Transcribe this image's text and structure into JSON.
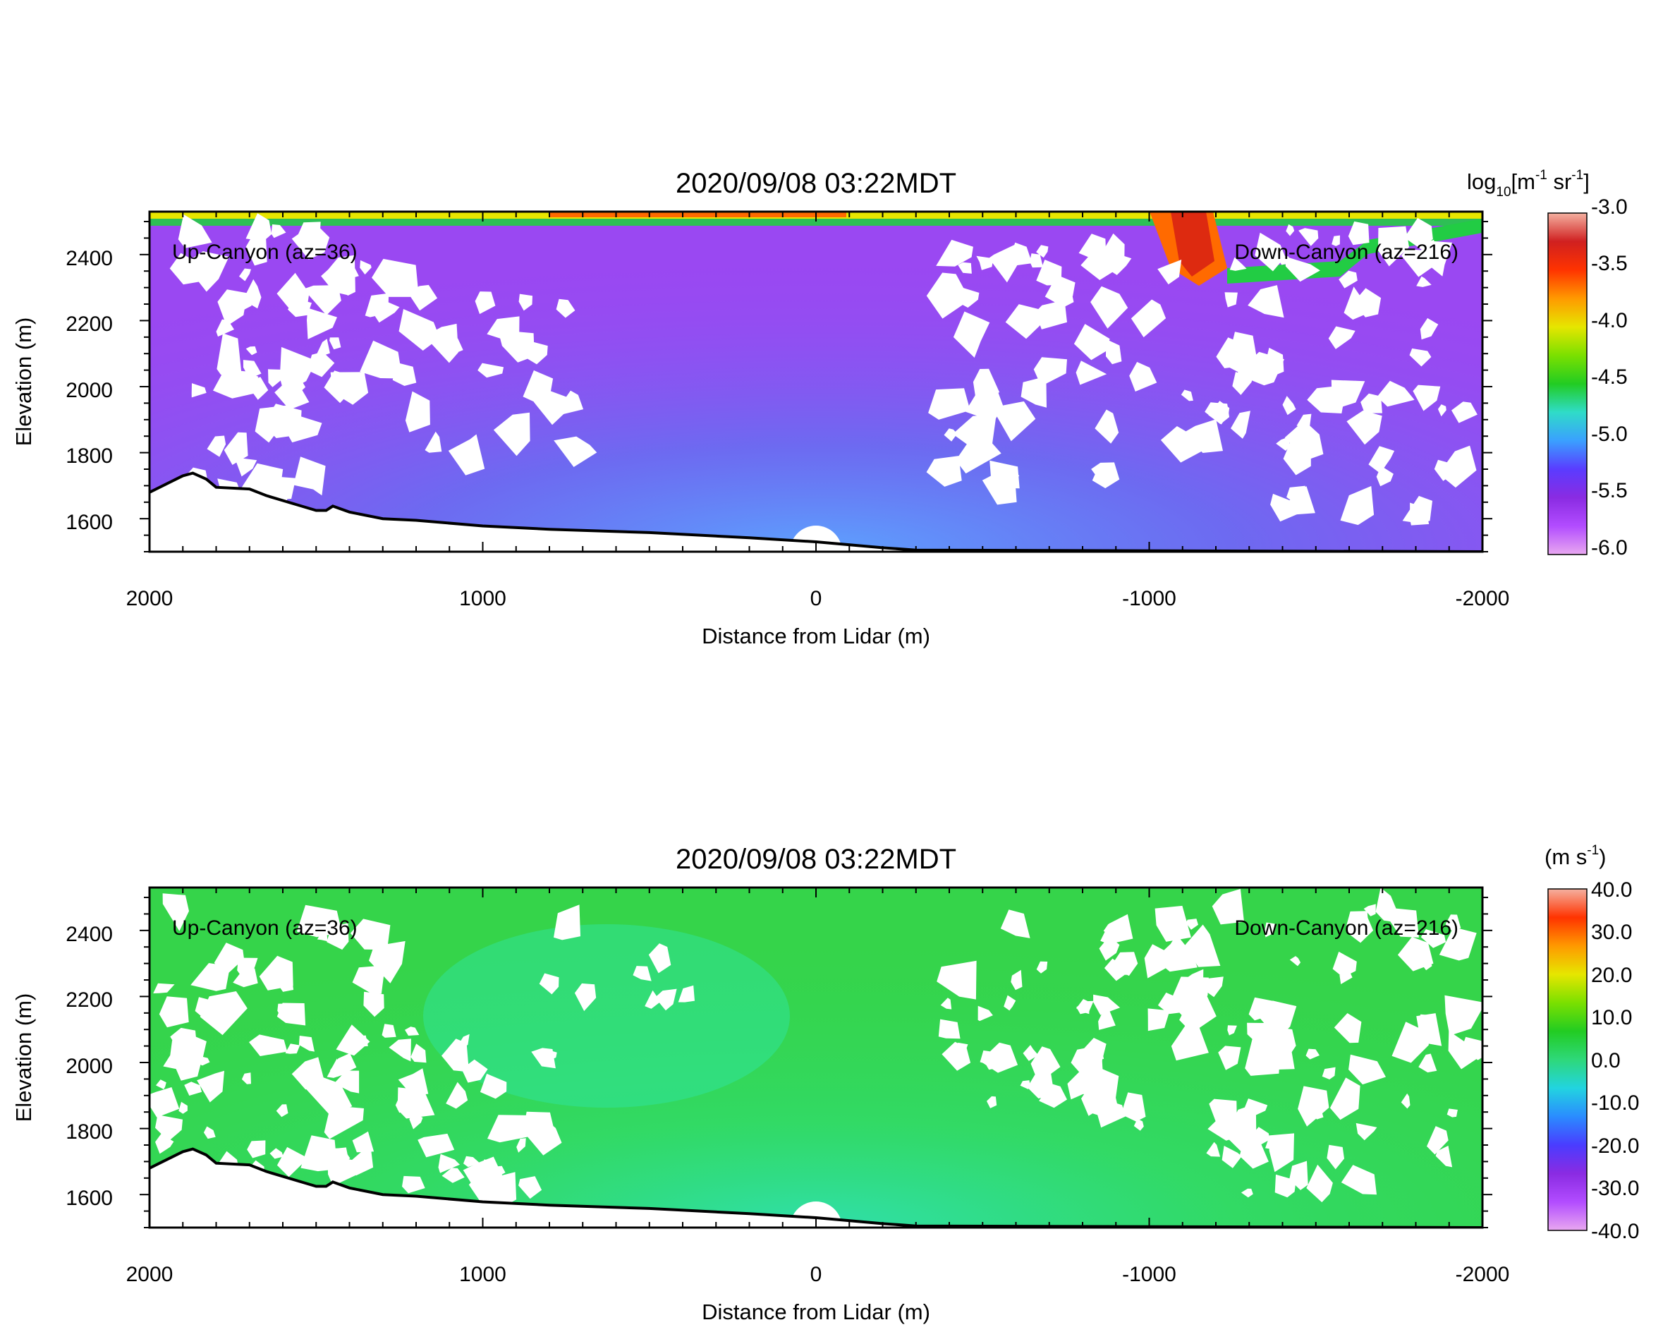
{
  "colors": {
    "axis": "#000000",
    "missing": "#ffffff",
    "terrain": "#000000",
    "backscatter_scale": [
      "#e8a8f0",
      "#b24cff",
      "#8a2be2",
      "#5a3cff",
      "#3aa0ff",
      "#2fdcc8",
      "#22cc22",
      "#7be000",
      "#e6e600",
      "#ff9900",
      "#ff3300",
      "#d02020",
      "#f4b0a0"
    ],
    "velocity_scale": [
      "#e8a8f0",
      "#b24cff",
      "#8a2be2",
      "#4a3cff",
      "#2a8cff",
      "#22d4e0",
      "#2ed87a",
      "#22cc22",
      "#7be000",
      "#e6e600",
      "#ff9900",
      "#ff3300",
      "#f4b0a0"
    ]
  },
  "chart_data": [
    {
      "type": "heatmap",
      "variable": "backscatter",
      "title": "2020/09/08 03:22MDT",
      "xlabel": "Distance from Lidar (m)",
      "ylabel": "Elevation (m)",
      "x_ticks": [
        "2000",
        "1000",
        "0",
        "-1000",
        "-2000"
      ],
      "y_ticks": [
        "2400",
        "2200",
        "2000",
        "1800",
        "1600"
      ],
      "xlim": [
        2000,
        -2000
      ],
      "ylim": [
        1500,
        2530
      ],
      "annotations": {
        "left": "Up-Canyon (az=36)",
        "right": "Down-Canyon (az=216)"
      },
      "colorbar": {
        "label_main": "log",
        "label_sub": "10",
        "label_unit": "[m",
        "label_exp1": "-1",
        "label_unit2": " sr",
        "label_exp2": "-1",
        "label_close": "]",
        "range": [
          -6.0,
          -3.0
        ],
        "ticks": [
          "-3.0",
          "-3.5",
          "-4.0",
          "-4.5",
          "-5.0",
          "-5.5",
          "-6.0"
        ]
      },
      "terrain": {
        "x": [
          2000,
          1900,
          1870,
          1830,
          1800,
          1700,
          1650,
          1550,
          1500,
          1470,
          1450,
          1400,
          1300,
          1200,
          1000,
          800,
          500,
          200,
          0,
          -200,
          -300
        ],
        "y": [
          1680,
          1730,
          1738,
          1720,
          1695,
          1690,
          1670,
          1640,
          1625,
          1625,
          1638,
          1620,
          1600,
          1595,
          1578,
          1568,
          1558,
          1542,
          1530,
          1512,
          1505
        ]
      }
    },
    {
      "type": "heatmap",
      "variable": "radial_velocity",
      "title": "2020/09/08 03:22MDT",
      "xlabel": "Distance from Lidar (m)",
      "ylabel": "Elevation (m)",
      "x_ticks": [
        "2000",
        "1000",
        "0",
        "-1000",
        "-2000"
      ],
      "y_ticks": [
        "2400",
        "2200",
        "2000",
        "1800",
        "1600"
      ],
      "xlim": [
        2000,
        -2000
      ],
      "ylim": [
        1500,
        2530
      ],
      "annotations": {
        "left": "Up-Canyon (az=36)",
        "right": "Down-Canyon (az=216)"
      },
      "colorbar": {
        "label_main": "(m s",
        "label_exp1": "-1",
        "label_close": ")",
        "range": [
          -40.0,
          40.0
        ],
        "ticks": [
          "40.0",
          "30.0",
          "20.0",
          "10.0",
          "0.0",
          "-10.0",
          "-20.0",
          "-30.0",
          "-40.0"
        ]
      },
      "terrain": {
        "x": [
          2000,
          1900,
          1870,
          1830,
          1800,
          1700,
          1650,
          1550,
          1500,
          1470,
          1450,
          1400,
          1300,
          1200,
          1000,
          800,
          500,
          200,
          0,
          -200,
          -300
        ],
        "y": [
          1680,
          1730,
          1738,
          1720,
          1695,
          1690,
          1670,
          1640,
          1625,
          1625,
          1638,
          1620,
          1600,
          1595,
          1578,
          1568,
          1558,
          1542,
          1530,
          1512,
          1505
        ]
      }
    }
  ]
}
